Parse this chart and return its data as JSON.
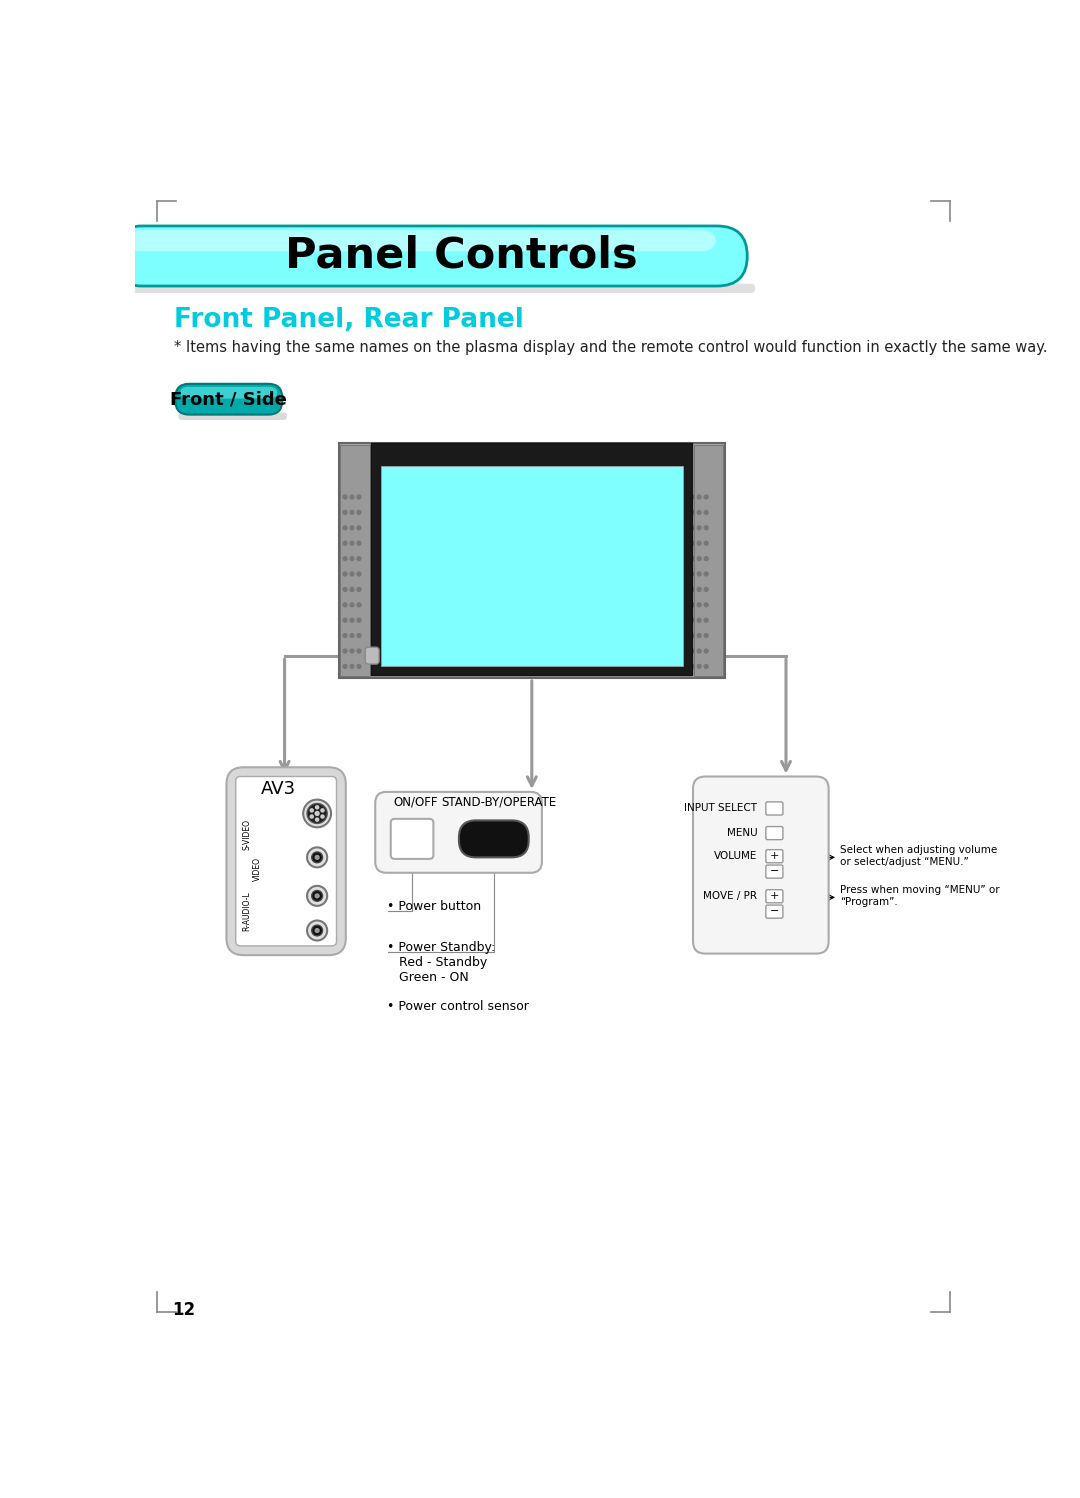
{
  "title": "Panel Controls",
  "subtitle": "Front Panel, Rear Panel",
  "note": "* Items having the same names on the plasma display and the remote control would function in exactly the same way.",
  "button_label": "Front / Side",
  "page_number": "12",
  "av3_label": "AV3",
  "power_labels": [
    "ON/OFF",
    "STAND-BY/OPERATE"
  ],
  "power_notes_1": "• Power button",
  "power_notes_2": "• Power Standby:\n   Red - Standby\n   Green - ON",
  "power_notes_3": "• Power control sensor",
  "control_labels": [
    "INPUT SELECT",
    "MENU",
    "VOLUME",
    "MOVE / PR"
  ],
  "control_note_1": "Select when adjusting volume\nor select/adjust “MENU.”",
  "control_note_2": "Press when moving “MENU” or\n“Program”.",
  "bg_color": "#ffffff",
  "banner_color": "#7effff",
  "banner_edge": "#009999",
  "subtitle_color": "#00ccdd",
  "btn_color": "#00aaaa",
  "btn_edge": "#007777",
  "arrow_color": "#999999",
  "tv_outer": "#aaaaaa",
  "tv_bezel": "#1a1a1a",
  "tv_screen": "#7fffff",
  "tv_speaker": "#999999",
  "panel_fill": "#f5f5f5",
  "panel_edge": "#aaaaaa",
  "text_color": "#000000",
  "corner_color": "#888888"
}
